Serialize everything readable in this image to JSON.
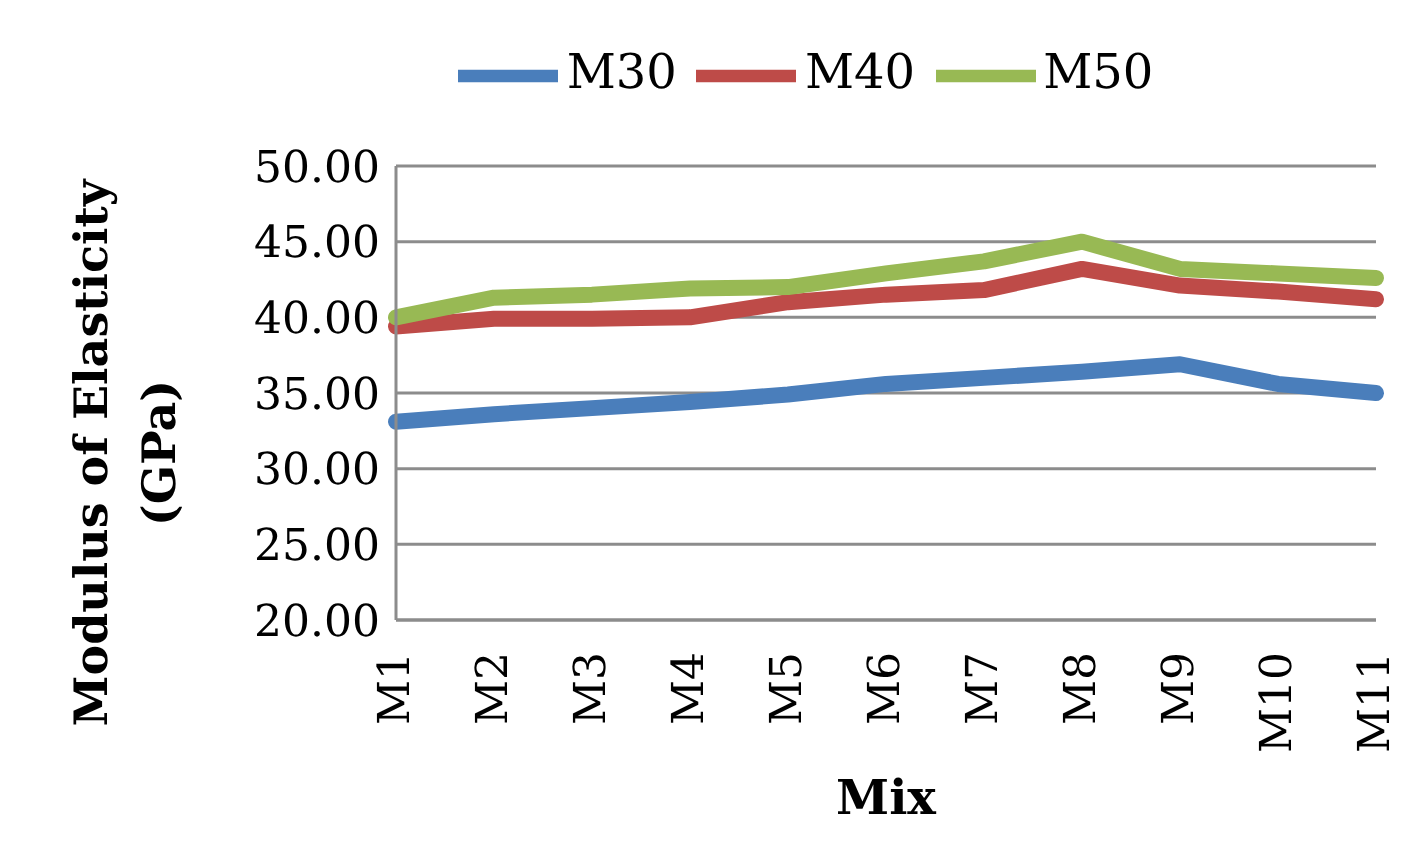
{
  "chart_data": {
    "type": "line",
    "xlabel": "Mix",
    "ylabel": "Modulus of Elasticity (GPa)",
    "categories": [
      "M1",
      "M2",
      "M3",
      "M4",
      "M5",
      "M6",
      "M7",
      "M8",
      "M9",
      "M10",
      "M11"
    ],
    "series": [
      {
        "name": "M30",
        "color": "#4a7ebb",
        "values": [
          33.1,
          33.6,
          34.0,
          34.4,
          34.9,
          35.6,
          36.0,
          36.4,
          36.9,
          35.6,
          35.0
        ]
      },
      {
        "name": "M40",
        "color": "#be4b48",
        "values": [
          39.4,
          39.9,
          39.9,
          40.0,
          41.0,
          41.5,
          41.8,
          43.2,
          42.1,
          41.7,
          41.2
        ]
      },
      {
        "name": "M50",
        "color": "#98b954",
        "values": [
          40.0,
          41.3,
          41.5,
          41.9,
          42.0,
          42.9,
          43.7,
          45.0,
          43.2,
          42.9,
          42.6
        ]
      }
    ],
    "ylim": [
      20,
      50
    ],
    "yticks": [
      {
        "value": 20,
        "label": "20.00"
      },
      {
        "value": 25,
        "label": "25.00"
      },
      {
        "value": 30,
        "label": "30.00"
      },
      {
        "value": 35,
        "label": "35.00"
      },
      {
        "value": 40,
        "label": "40.00"
      },
      {
        "value": 45,
        "label": "45.00"
      },
      {
        "value": 50,
        "label": "50.00"
      }
    ],
    "grid": "y",
    "legend": "top",
    "marker": "none",
    "line_style": "solid"
  }
}
